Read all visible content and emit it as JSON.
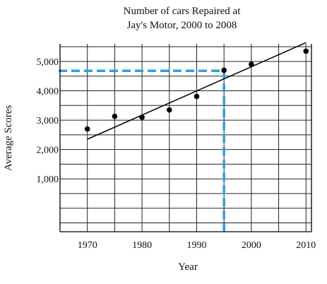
{
  "chart_data": {
    "type": "scatter",
    "title_lines": [
      "Number of cars Repaired at",
      "Jay's Motor, 2000 to 2008"
    ],
    "xlabel": "Year",
    "ylabel": "Average Scores",
    "xlim": [
      1965,
      2011
    ],
    "ylim": [
      -800,
      5600
    ],
    "x_ticks": [
      1970,
      1980,
      1990,
      2000,
      2010
    ],
    "y_ticks": [
      1000,
      2000,
      3000,
      4000,
      5000
    ],
    "y_tick_labels": [
      "1,000",
      "2,000",
      "3,000",
      "4,000",
      "5,000"
    ],
    "grid": true,
    "points": [
      {
        "x": 1970,
        "y": 2700
      },
      {
        "x": 1975,
        "y": 3130
      },
      {
        "x": 1980,
        "y": 3100
      },
      {
        "x": 1985,
        "y": 3350
      },
      {
        "x": 1990,
        "y": 3810
      },
      {
        "x": 1995,
        "y": 4700
      },
      {
        "x": 2000,
        "y": 4900
      },
      {
        "x": 2010,
        "y": 5350
      }
    ],
    "trend_line": {
      "x": [
        1970,
        2010
      ],
      "y": [
        2350,
        5640
      ]
    },
    "annotation": {
      "x": 1995,
      "y": 4680,
      "color": "#2f9fe0",
      "style": "dashed"
    }
  }
}
